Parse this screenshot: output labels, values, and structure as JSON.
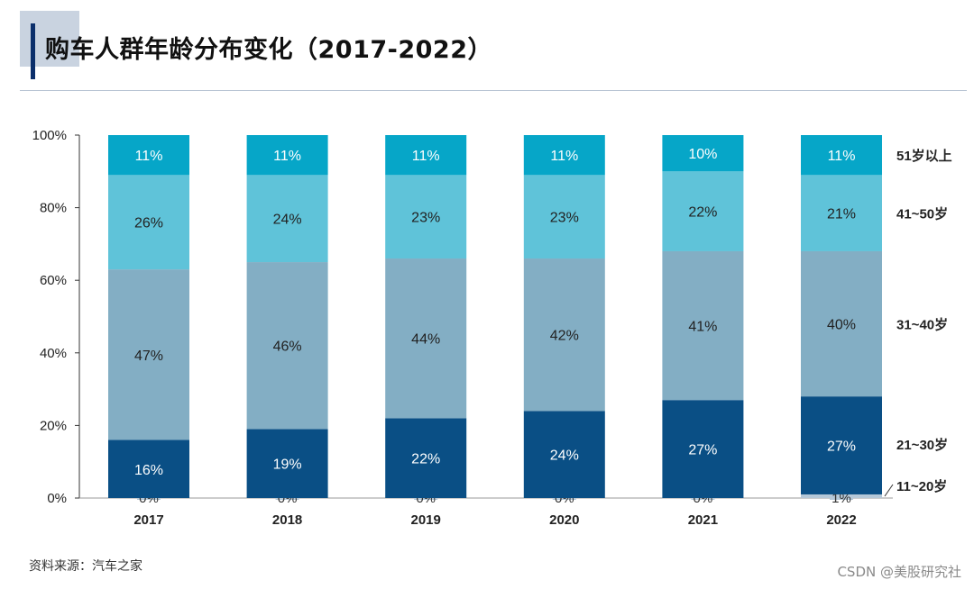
{
  "title": "购车人群年龄分布变化（2017-2022）",
  "source": "资料来源：汽车之家",
  "watermark": "CSDN @美股研究社",
  "colors": {
    "11~20岁": "#b5c8d8",
    "21~30岁": "#0a4f85",
    "31~40岁": "#83aec4",
    "41~50岁": "#5fc3d9",
    "51岁以上": "#06a6c8"
  },
  "chart_data": {
    "type": "bar",
    "stacked": true,
    "categories": [
      "2017",
      "2018",
      "2019",
      "2020",
      "2021",
      "2022"
    ],
    "ylim": [
      0,
      100
    ],
    "yticks": [
      "0%",
      "20%",
      "40%",
      "60%",
      "80%",
      "100%"
    ],
    "legend_placement": "right",
    "series": [
      {
        "name": "11~20岁",
        "values": [
          0,
          0,
          0,
          0,
          0,
          1
        ],
        "labels": [
          "0%",
          "0%",
          "0%",
          "0%",
          "0%",
          "1%"
        ]
      },
      {
        "name": "21~30岁",
        "values": [
          16,
          19,
          22,
          24,
          27,
          27
        ],
        "labels": [
          "16%",
          "19%",
          "22%",
          "24%",
          "27%",
          "27%"
        ]
      },
      {
        "name": "31~40岁",
        "values": [
          47,
          46,
          44,
          42,
          41,
          40
        ],
        "labels": [
          "47%",
          "46%",
          "44%",
          "42%",
          "41%",
          "40%"
        ]
      },
      {
        "name": "41~50岁",
        "values": [
          26,
          24,
          23,
          23,
          22,
          21
        ],
        "labels": [
          "26%",
          "24%",
          "23%",
          "23%",
          "22%",
          "21%"
        ]
      },
      {
        "name": "51岁以上",
        "values": [
          11,
          11,
          11,
          11,
          10,
          11
        ],
        "labels": [
          "11%",
          "11%",
          "11%",
          "11%",
          "10%",
          "11%"
        ]
      }
    ]
  }
}
